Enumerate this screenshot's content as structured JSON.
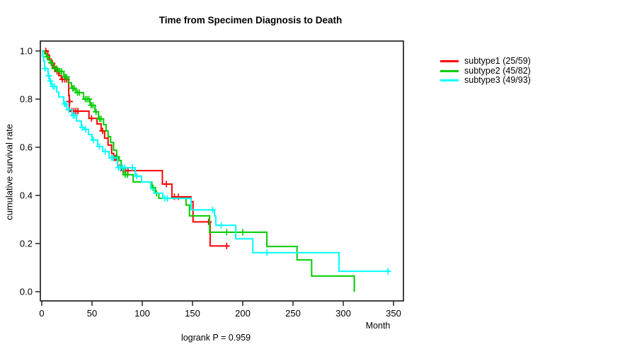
{
  "chart_data": {
    "type": "line",
    "variant": "kaplan-meier-step",
    "title": "Time from Specimen Diagnosis to Death",
    "xlabel": "Month",
    "ylabel": "cumulative survival rate",
    "annotation": "logrank P = 0.959",
    "xlim": [
      0,
      360
    ],
    "ylim": [
      0,
      1
    ],
    "grid": false,
    "legend_position": "right-outside",
    "x_ticks": [
      0,
      50,
      100,
      150,
      200,
      250,
      300,
      350
    ],
    "y_tick_labels": [
      "0.0",
      "0.2",
      "0.4",
      "0.6",
      "0.8",
      "1.0"
    ],
    "frame_color": "#2e2e2e",
    "series": [
      {
        "name": "subtype1 (25/59)",
        "color": "#ff0000",
        "steps": [
          [
            0,
            1.0
          ],
          [
            6,
            0.983
          ],
          [
            7.5,
            0.966
          ],
          [
            9.5,
            0.949
          ],
          [
            11.5,
            0.932
          ],
          [
            14,
            0.915
          ],
          [
            17,
            0.898
          ],
          [
            19.5,
            0.882
          ],
          [
            26.8,
            0.815
          ],
          [
            27.4,
            0.75
          ],
          [
            47,
            0.72
          ],
          [
            55,
            0.697
          ],
          [
            59,
            0.668
          ],
          [
            62.5,
            0.638
          ],
          [
            66,
            0.609
          ],
          [
            69.5,
            0.574
          ],
          [
            71.5,
            0.556
          ],
          [
            75.5,
            0.526
          ],
          [
            79,
            0.503
          ],
          [
            120,
            0.447
          ],
          [
            129.5,
            0.394
          ],
          [
            148.5,
            0.374
          ],
          [
            150.5,
            0.29
          ],
          [
            167.5,
            0.19
          ],
          [
            186,
            0.19
          ]
        ],
        "censors": [
          [
            4,
            1.0
          ],
          [
            10.5,
            0.949
          ],
          [
            12.8,
            0.932
          ],
          [
            15.2,
            0.915
          ],
          [
            20.5,
            0.882
          ],
          [
            22.8,
            0.882
          ],
          [
            24.7,
            0.882
          ],
          [
            27.8,
            0.79
          ],
          [
            30,
            0.75
          ],
          [
            32,
            0.75
          ],
          [
            34,
            0.75
          ],
          [
            36,
            0.75
          ],
          [
            49.5,
            0.72
          ],
          [
            60.5,
            0.668
          ],
          [
            72.3,
            0.556
          ],
          [
            73.7,
            0.556
          ],
          [
            81,
            0.503
          ],
          [
            83.3,
            0.503
          ],
          [
            85.7,
            0.503
          ],
          [
            124,
            0.447
          ],
          [
            132,
            0.394
          ],
          [
            136,
            0.394
          ],
          [
            166,
            0.29
          ],
          [
            184,
            0.19
          ]
        ]
      },
      {
        "name": "subtype2 (45/82)",
        "color": "#00cd00",
        "steps": [
          [
            0,
            1.0
          ],
          [
            2.8,
            0.988
          ],
          [
            4.6,
            0.976
          ],
          [
            6.5,
            0.963
          ],
          [
            8.4,
            0.951
          ],
          [
            11,
            0.927
          ],
          [
            16.5,
            0.915
          ],
          [
            22,
            0.892
          ],
          [
            26.5,
            0.868
          ],
          [
            29.5,
            0.845
          ],
          [
            34,
            0.827
          ],
          [
            41.5,
            0.8
          ],
          [
            48,
            0.774
          ],
          [
            53,
            0.747
          ],
          [
            56.5,
            0.718
          ],
          [
            61.5,
            0.694
          ],
          [
            64,
            0.668
          ],
          [
            66,
            0.644
          ],
          [
            68.5,
            0.62
          ],
          [
            71.5,
            0.588
          ],
          [
            74.5,
            0.56
          ],
          [
            77,
            0.545
          ],
          [
            79,
            0.515
          ],
          [
            81.5,
            0.486
          ],
          [
            91,
            0.456
          ],
          [
            109.5,
            0.432
          ],
          [
            113,
            0.409
          ],
          [
            116.5,
            0.388
          ],
          [
            143.5,
            0.36
          ],
          [
            147,
            0.315
          ],
          [
            167,
            0.247
          ],
          [
            224,
            0.188
          ],
          [
            254,
            0.132
          ],
          [
            268.5,
            0.065
          ],
          [
            311,
            0
          ]
        ],
        "censors": [
          [
            5.5,
            0.976
          ],
          [
            9.3,
            0.951
          ],
          [
            12.8,
            0.927
          ],
          [
            14.6,
            0.927
          ],
          [
            18,
            0.915
          ],
          [
            19.8,
            0.915
          ],
          [
            23.4,
            0.892
          ],
          [
            24.8,
            0.892
          ],
          [
            30.8,
            0.845
          ],
          [
            32.2,
            0.845
          ],
          [
            35.5,
            0.827
          ],
          [
            37.3,
            0.827
          ],
          [
            43.3,
            0.8
          ],
          [
            45.1,
            0.8
          ],
          [
            46.9,
            0.8
          ],
          [
            49.2,
            0.774
          ],
          [
            51,
            0.774
          ],
          [
            54,
            0.747
          ],
          [
            57.5,
            0.718
          ],
          [
            59,
            0.718
          ],
          [
            74.8,
            0.56
          ],
          [
            83,
            0.486
          ],
          [
            85.3,
            0.486
          ],
          [
            110.8,
            0.432
          ],
          [
            114.2,
            0.409
          ],
          [
            184,
            0.247
          ],
          [
            200,
            0.247
          ]
        ]
      },
      {
        "name": "subtype3 (49/93)",
        "color": "#00ffff",
        "steps": [
          [
            0,
            1.0
          ],
          [
            0.9,
            0.978
          ],
          [
            1.8,
            0.957
          ],
          [
            2.8,
            0.927
          ],
          [
            6.3,
            0.897
          ],
          [
            7.7,
            0.875
          ],
          [
            9.5,
            0.853
          ],
          [
            14.8,
            0.83
          ],
          [
            16.9,
            0.809
          ],
          [
            21.8,
            0.78
          ],
          [
            25,
            0.756
          ],
          [
            30.3,
            0.732
          ],
          [
            34.5,
            0.709
          ],
          [
            39.4,
            0.682
          ],
          [
            42.3,
            0.674
          ],
          [
            46.5,
            0.653
          ],
          [
            50,
            0.63
          ],
          [
            55.6,
            0.603
          ],
          [
            60.6,
            0.582
          ],
          [
            67,
            0.556
          ],
          [
            75.4,
            0.515
          ],
          [
            93,
            0.48
          ],
          [
            99.3,
            0.456
          ],
          [
            108.5,
            0.427
          ],
          [
            112,
            0.409
          ],
          [
            120.4,
            0.388
          ],
          [
            148.6,
            0.34
          ],
          [
            171.8,
            0.315
          ],
          [
            173.2,
            0.276
          ],
          [
            193,
            0.22
          ],
          [
            210,
            0.162
          ],
          [
            295.8,
            0.085
          ],
          [
            346.5,
            0.085
          ]
        ],
        "censors": [
          [
            3.3,
            0.927
          ],
          [
            6.9,
            0.897
          ],
          [
            8.6,
            0.875
          ],
          [
            11,
            0.853
          ],
          [
            12.5,
            0.853
          ],
          [
            22.6,
            0.78
          ],
          [
            24,
            0.78
          ],
          [
            26.9,
            0.756
          ],
          [
            31.2,
            0.732
          ],
          [
            32.7,
            0.732
          ],
          [
            40.3,
            0.682
          ],
          [
            43.7,
            0.674
          ],
          [
            51.4,
            0.63
          ],
          [
            57.5,
            0.603
          ],
          [
            63.2,
            0.582
          ],
          [
            69.5,
            0.556
          ],
          [
            71,
            0.556
          ],
          [
            76.4,
            0.515
          ],
          [
            78.3,
            0.515
          ],
          [
            80.2,
            0.515
          ],
          [
            82.5,
            0.515
          ],
          [
            90.2,
            0.515
          ],
          [
            94.5,
            0.48
          ],
          [
            122.5,
            0.388
          ],
          [
            124.9,
            0.388
          ],
          [
            170,
            0.34
          ],
          [
            178.5,
            0.276
          ],
          [
            224,
            0.162
          ],
          [
            344.4,
            0.085
          ]
        ]
      }
    ]
  }
}
